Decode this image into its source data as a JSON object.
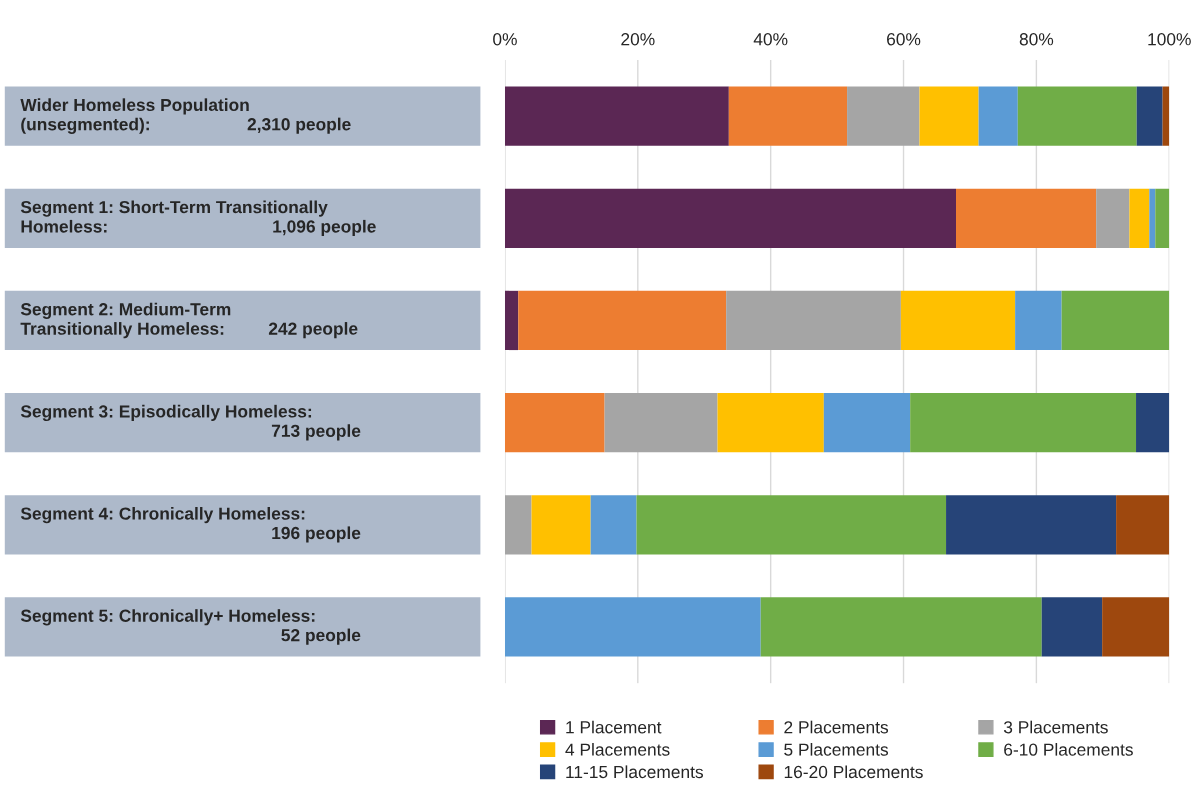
{
  "chart_data": {
    "type": "bar",
    "orientation": "horizontal",
    "stacked": true,
    "categories": [
      "Wider Homeless Population\n(unsegmented):                    2,310 people",
      "Segment 1: Short-Term Transitionally\nHomeless:                                  1,096 people",
      "Segment 2: Medium-Term\nTransitionally Homeless:         242 people",
      "Segment 3: Episodically Homeless:\n                                                    713 people",
      "Segment 4: Chronically Homeless:\n                                                    196 people",
      "Segment 5: Chronically+ Homeless:\n                                                      52 people"
    ],
    "series": [
      {
        "name": "1 Placement",
        "color": "#5b2754",
        "values": [
          33.7,
          67.9,
          2.0,
          0,
          0,
          0
        ]
      },
      {
        "name": "2 Placements",
        "color": "#ed7d31",
        "values": [
          17.8,
          21.1,
          31.3,
          15.0,
          0,
          0
        ]
      },
      {
        "name": "3 Placements",
        "color": "#a5a5a5",
        "values": [
          10.9,
          5.0,
          26.3,
          17.0,
          4.0,
          0
        ]
      },
      {
        "name": "4 Placements",
        "color": "#ffc000",
        "values": [
          8.9,
          3.0,
          17.2,
          16.0,
          8.9,
          0
        ]
      },
      {
        "name": "5 Placements",
        "color": "#5b9bd5",
        "values": [
          5.9,
          0.9,
          7.0,
          13.0,
          6.9,
          38.5
        ]
      },
      {
        "name": "6-10 Placements",
        "color": "#70ad47",
        "values": [
          17.9,
          2.1,
          16.2,
          34.0,
          46.6,
          42.3
        ]
      },
      {
        "name": "11-15 Placements",
        "color": "#264478",
        "values": [
          3.9,
          0,
          0,
          5.0,
          25.6,
          9.1
        ]
      },
      {
        "name": "16-20 Placements",
        "color": "#9e480e",
        "values": [
          1.0,
          0,
          0,
          0,
          8.0,
          10.1
        ]
      }
    ],
    "xlim": [
      0,
      100
    ],
    "xticks": [
      {
        "value": 0,
        "label": "0%"
      },
      {
        "value": 20,
        "label": "20%"
      },
      {
        "value": 40,
        "label": "40%"
      },
      {
        "value": 60,
        "label": "60%"
      },
      {
        "value": 80,
        "label": "80%"
      },
      {
        "value": 100,
        "label": "100%"
      }
    ],
    "grid": "x",
    "legend": "bottom"
  }
}
